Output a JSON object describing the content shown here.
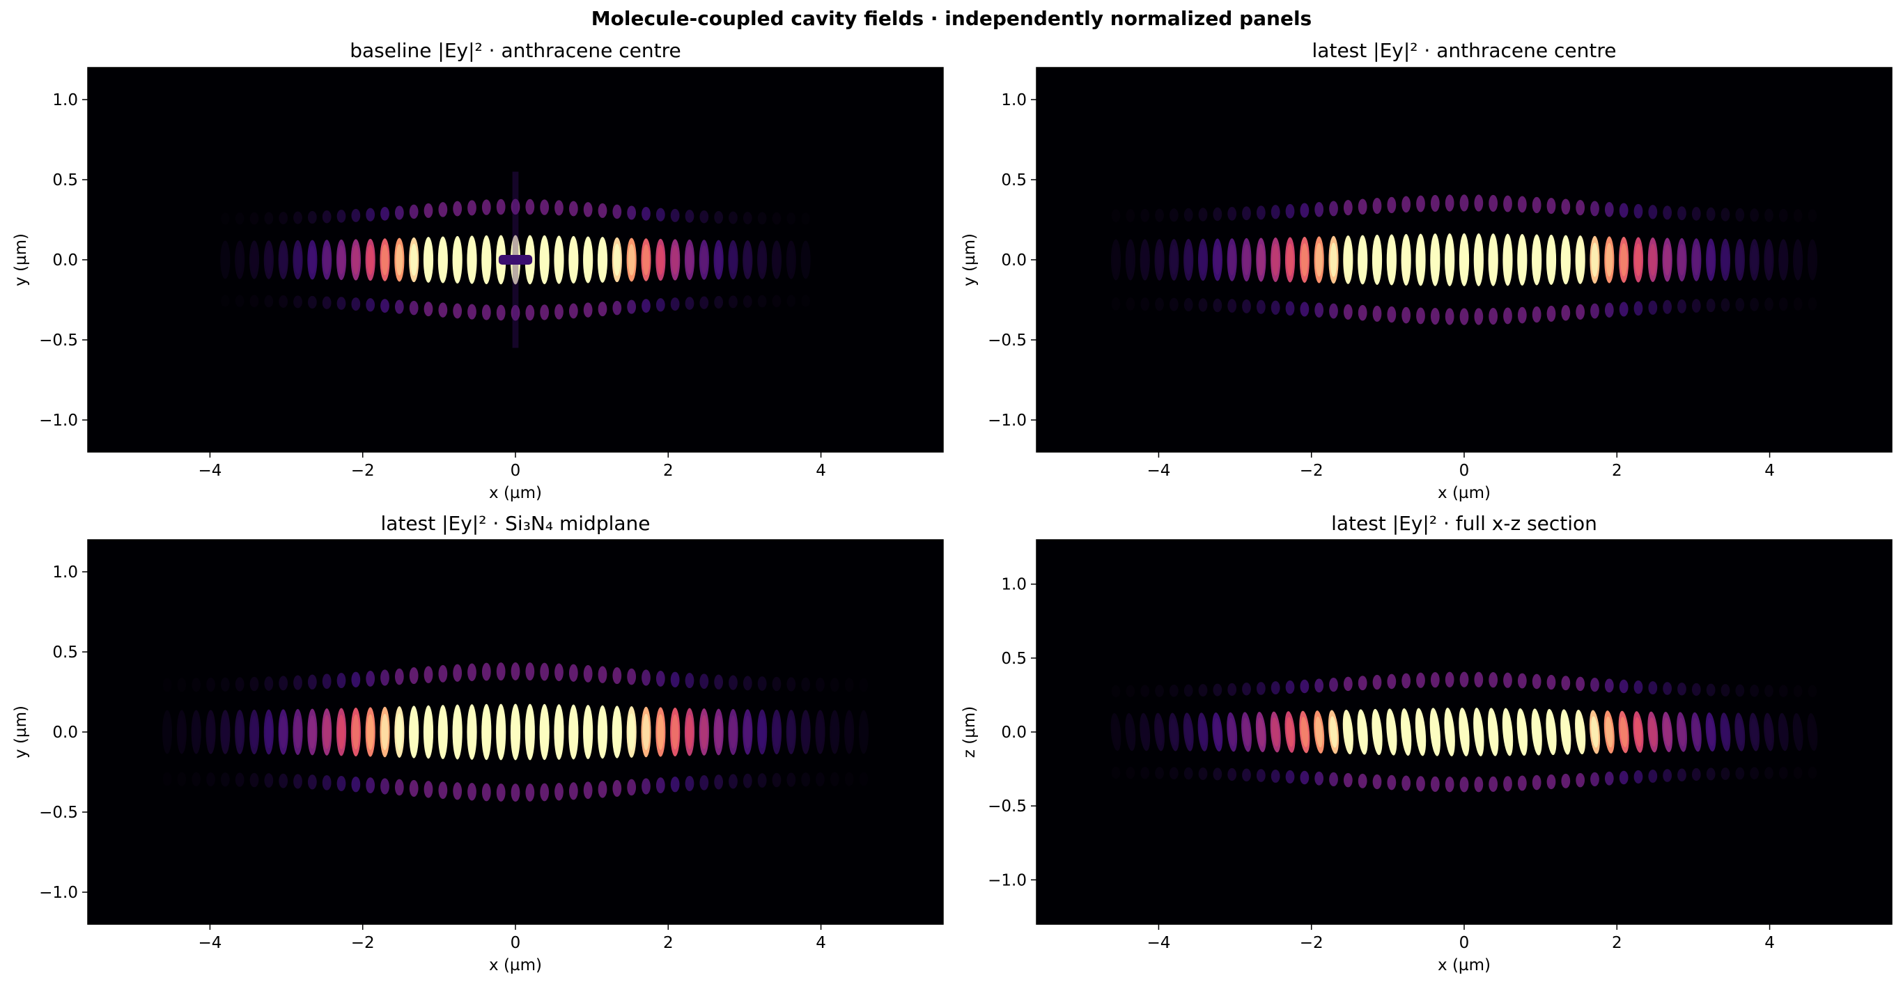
{
  "figure_title": "Molecule-coupled cavity fields · independently normalized panels",
  "colormap": [
    "#000004",
    "#3b0f70",
    "#8c2981",
    "#de4968",
    "#fe9f6d",
    "#fcfdbf"
  ],
  "chart_data": [
    {
      "type": "heatmap",
      "title": "baseline |Ey|² · anthracene centre",
      "xlabel": "x (µm)",
      "ylabel": "y (µm)",
      "xlim": [
        -5.6,
        5.6
      ],
      "ylim": [
        -1.2,
        1.2
      ],
      "xticks": [
        -4,
        -2,
        0,
        2,
        4
      ],
      "yticks": [
        -1.0,
        -0.5,
        0.0,
        0.5,
        1.0
      ],
      "xtick_labels": [
        "−4",
        "−2",
        "0",
        "2",
        "4"
      ],
      "ytick_labels": [
        "−1.0",
        "−0.5",
        "0.0",
        "0.5",
        "1.0"
      ],
      "field": {
        "fringe_period": 0.19,
        "envelope_width": 1.3,
        "core_halfheight": 0.14,
        "peak_x": 0.0,
        "saturated_center": true,
        "notch_at_center": true,
        "tilt": 0.0
      }
    },
    {
      "type": "heatmap",
      "title": "latest |Ey|² · anthracene centre",
      "xlabel": "x (µm)",
      "ylabel": "y (µm)",
      "xlim": [
        -5.6,
        5.6
      ],
      "ylim": [
        -1.2,
        1.2
      ],
      "xticks": [
        -4,
        -2,
        0,
        2,
        4
      ],
      "yticks": [
        -1.0,
        -0.5,
        0.0,
        0.5,
        1.0
      ],
      "xtick_labels": [
        "−4",
        "−2",
        "0",
        "2",
        "4"
      ],
      "ytick_labels": [
        "−1.0",
        "−0.5",
        "0.0",
        "0.5",
        "1.0"
      ],
      "field": {
        "fringe_period": 0.19,
        "envelope_width": 1.6,
        "core_halfheight": 0.15,
        "peak_x": 0.0,
        "saturated_center": true,
        "notch_at_center": false,
        "tilt": 0.0
      }
    },
    {
      "type": "heatmap",
      "title": "latest |Ey|² · Si₃N₄ midplane",
      "xlabel": "x (µm)",
      "ylabel": "y (µm)",
      "xlim": [
        -5.6,
        5.6
      ],
      "ylim": [
        -1.2,
        1.2
      ],
      "xticks": [
        -4,
        -2,
        0,
        2,
        4
      ],
      "yticks": [
        -1.0,
        -0.5,
        0.0,
        0.5,
        1.0
      ],
      "xtick_labels": [
        "−4",
        "−2",
        "0",
        "2",
        "4"
      ],
      "ytick_labels": [
        "−1.0",
        "−0.5",
        "0.0",
        "0.5",
        "1.0"
      ],
      "field": {
        "fringe_period": 0.19,
        "envelope_width": 1.55,
        "core_halfheight": 0.16,
        "peak_x": 0.0,
        "saturated_center": true,
        "notch_at_center": false,
        "tilt": 0.0
      }
    },
    {
      "type": "heatmap",
      "title": "latest |Ey|² · full x-z section",
      "xlabel": "x (µm)",
      "ylabel": "z (µm)",
      "xlim": [
        -5.6,
        5.6
      ],
      "ylim": [
        -1.3,
        1.3
      ],
      "xticks": [
        -4,
        -2,
        0,
        2,
        4
      ],
      "yticks": [
        -1.0,
        -0.5,
        0.0,
        0.5,
        1.0
      ],
      "xtick_labels": [
        "−4",
        "−2",
        "0",
        "2",
        "4"
      ],
      "ytick_labels": [
        "−1.0",
        "−0.5",
        "0.0",
        "0.5",
        "1.0"
      ],
      "field": {
        "fringe_period": 0.19,
        "envelope_width": 1.6,
        "core_halfheight": 0.15,
        "peak_x": 0.0,
        "saturated_center": true,
        "notch_at_center": false,
        "tilt": 0.25
      }
    }
  ]
}
